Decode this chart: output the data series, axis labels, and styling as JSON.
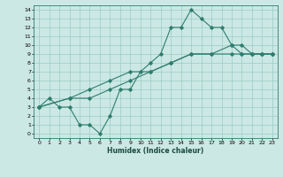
{
  "xlabel": "Humidex (Indice chaleur)",
  "ylabel": "",
  "xlim": [
    -0.5,
    23.5
  ],
  "ylim": [
    -0.5,
    14.5
  ],
  "xticks": [
    0,
    1,
    2,
    3,
    4,
    5,
    6,
    7,
    8,
    9,
    10,
    11,
    12,
    13,
    14,
    15,
    16,
    17,
    18,
    19,
    20,
    21,
    22,
    23
  ],
  "yticks": [
    0,
    1,
    2,
    3,
    4,
    5,
    6,
    7,
    8,
    9,
    10,
    11,
    12,
    13,
    14
  ],
  "bg_color": "#cce8e4",
  "grid_color": "#99ccc4",
  "line_color": "#2e7d6e",
  "lines": [
    {
      "x": [
        0,
        1,
        2,
        3,
        4,
        5,
        6,
        7,
        8,
        9,
        10,
        11,
        12,
        13,
        14,
        15,
        16,
        17,
        18,
        19,
        20,
        21,
        22,
        23
      ],
      "y": [
        3,
        4,
        3,
        3,
        1,
        1,
        0,
        2,
        5,
        5,
        7,
        8,
        9,
        12,
        12,
        14,
        13,
        12,
        12,
        10,
        9,
        9,
        9,
        9
      ]
    },
    {
      "x": [
        0,
        3,
        5,
        7,
        9,
        11,
        13,
        15,
        17,
        19,
        20,
        21,
        22,
        23
      ],
      "y": [
        3,
        4,
        4,
        5,
        6,
        7,
        8,
        9,
        9,
        10,
        10,
        9,
        9,
        9
      ]
    },
    {
      "x": [
        0,
        3,
        5,
        7,
        9,
        11,
        13,
        15,
        17,
        19,
        20,
        21,
        22,
        23
      ],
      "y": [
        3,
        4,
        5,
        6,
        7,
        7,
        8,
        9,
        9,
        9,
        9,
        9,
        9,
        9
      ]
    }
  ]
}
